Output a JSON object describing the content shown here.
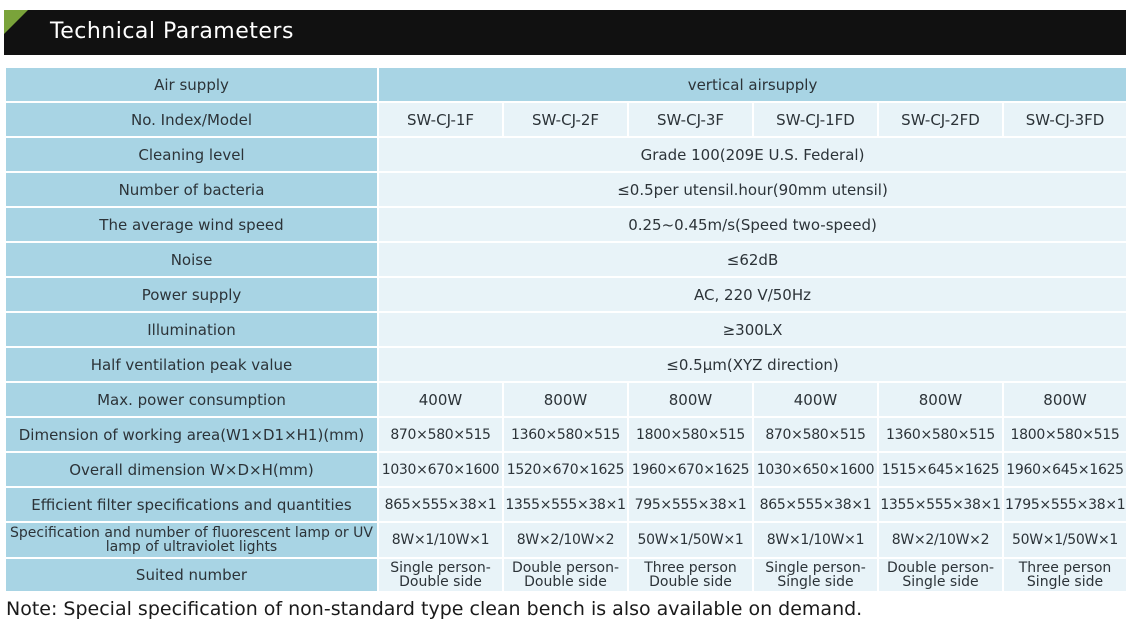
{
  "title": "Technical Parameters",
  "rows": {
    "air_supply": {
      "label": "Air supply",
      "value": "vertical airsupply"
    },
    "model": {
      "label": "No. Index/Model",
      "values": [
        "SW-CJ-1F",
        "SW-CJ-2F",
        "SW-CJ-3F",
        "SW-CJ-1FD",
        "SW-CJ-2FD",
        "SW-CJ-3FD"
      ]
    },
    "cleaning_level": {
      "label": "Cleaning level",
      "value": "Grade 100(209E U.S. Federal)"
    },
    "bacteria": {
      "label": "Number of bacteria",
      "value": "≤0.5per utensil.hour(90mm utensil)"
    },
    "wind_speed": {
      "label": "The average wind speed",
      "value": "0.25~0.45m/s(Speed two-speed)"
    },
    "noise": {
      "label": "Noise",
      "value": "≤62dB"
    },
    "power_supply": {
      "label": "Power supply",
      "value": "AC, 220 V/50Hz"
    },
    "illumination": {
      "label": "Illumination",
      "value": "≥300LX"
    },
    "half_ventilation": {
      "label": "Half ventilation peak value",
      "value": "≤0.5μm(XYZ direction)"
    },
    "max_power": {
      "label": "Max. power consumption",
      "values": [
        "400W",
        "800W",
        "800W",
        "400W",
        "800W",
        "800W"
      ]
    },
    "working_area": {
      "label": "Dimension of working area(W1×D1×H1)(mm)",
      "values": [
        "870×580×515",
        "1360×580×515",
        "1800×580×515",
        "870×580×515",
        "1360×580×515",
        "1800×580×515"
      ]
    },
    "overall_dimension": {
      "label": "Overall dimension W×D×H(mm)",
      "values": [
        "1030×670×1600",
        "1520×670×1625",
        "1960×670×1625",
        "1030×650×1600",
        "1515×645×1625",
        "1960×645×1625"
      ]
    },
    "filter": {
      "label": "Efficient filter specifications and quantities",
      "values": [
        "865×555×38×1",
        "1355×555×38×1",
        "795×555×38×1",
        "865×555×38×1",
        "1355×555×38×1",
        "1795×555×38×1"
      ]
    },
    "lamp": {
      "label": "Specification and number of fluorescent lamp or UV lamp of ultraviolet lights",
      "values": [
        "8W×1/10W×1",
        "8W×2/10W×2",
        "50W×1/50W×1",
        "8W×1/10W×1",
        "8W×2/10W×2",
        "50W×1/50W×1"
      ]
    },
    "suited": {
      "label": "Suited number",
      "values": [
        "Single person-Double side",
        "Double person-Double side",
        "Three person Double side",
        "Single person-Single side",
        "Double person-Single side",
        "Three person Single side"
      ]
    }
  },
  "note": "Note: Special specification of non-standard type clean bench is also available on demand."
}
